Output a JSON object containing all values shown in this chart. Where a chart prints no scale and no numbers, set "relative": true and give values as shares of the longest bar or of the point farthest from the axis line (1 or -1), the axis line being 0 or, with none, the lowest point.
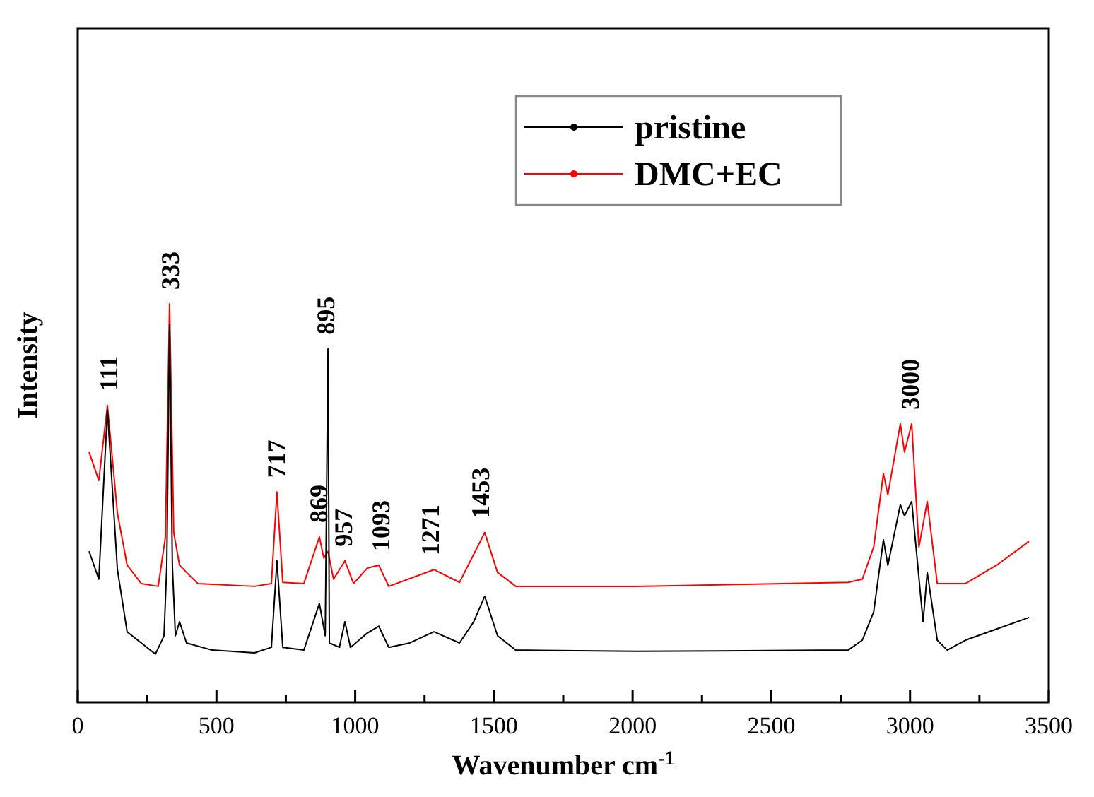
{
  "chart_data": {
    "type": "line",
    "relative": true,
    "xlabel": "Wavenumber cm$^{-1}$",
    "ylabel": "Intensity",
    "xlim": [
      0,
      3500
    ],
    "xticks": [
      0,
      {
        "value": 250,
        "label": null
      },
      500,
      {
        "value": 750,
        "label": null
      },
      1000,
      {
        "value": 1250,
        "label": null
      },
      1500,
      {
        "value": 1750,
        "label": null
      },
      2000,
      {
        "value": 2250,
        "label": null
      },
      2500,
      {
        "value": 2750,
        "label": null
      },
      3000,
      {
        "value": 3250,
        "label": null
      },
      3500
    ],
    "legend": "top right",
    "line_style": "solid",
    "grid": false,
    "series": [
      {
        "name": "pristine",
        "color": "#000000",
        "x": [
          41,
          76,
          107,
          143,
          178,
          229,
          280,
          311,
          321,
          331,
          341,
          352,
          367,
          392,
          484,
          637,
          698,
          718,
          739,
          815,
          871,
          892,
          902,
          907,
          943,
          963,
          983,
          1044,
          1085,
          1121,
          1197,
          1284,
          1376,
          1427,
          1467,
          1513,
          1579,
          2013,
          2777,
          2828,
          2869,
          2904,
          2920,
          2965,
          2980,
          3006,
          3047,
          3062,
          3098,
          3134,
          3200,
          3312,
          3429
        ],
        "values": [
          0.379,
          0.309,
          0.734,
          0.333,
          0.177,
          0.149,
          0.121,
          0.167,
          0.344,
          0.947,
          0.344,
          0.167,
          0.202,
          0.149,
          0.131,
          0.124,
          0.138,
          0.355,
          0.138,
          0.131,
          0.248,
          0.167,
          0.887,
          0.149,
          0.138,
          0.202,
          0.138,
          0.174,
          0.191,
          0.138,
          0.149,
          0.177,
          0.149,
          0.202,
          0.266,
          0.167,
          0.131,
          0.128,
          0.131,
          0.156,
          0.227,
          0.408,
          0.344,
          0.496,
          0.468,
          0.504,
          0.202,
          0.326,
          0.156,
          0.131,
          0.156,
          0.184,
          0.213
        ]
      },
      {
        "name": "DMC+EC",
        "color": "#ff0000",
        "x": [
          41,
          76,
          107,
          143,
          178,
          229,
          290,
          316,
          331,
          346,
          367,
          392,
          433,
          637,
          698,
          718,
          739,
          815,
          871,
          887,
          902,
          922,
          963,
          994,
          1044,
          1085,
          1121,
          1284,
          1376,
          1467,
          1513,
          1579,
          2013,
          2777,
          2828,
          2869,
          2904,
          2920,
          2965,
          2980,
          3006,
          3032,
          3062,
          3098,
          3200,
          3312,
          3429
        ],
        "values": [
          0.628,
          0.557,
          0.745,
          0.475,
          0.344,
          0.298,
          0.291,
          0.415,
          1,
          0.426,
          0.344,
          0.326,
          0.298,
          0.291,
          0.298,
          0.528,
          0.301,
          0.298,
          0.415,
          0.362,
          0.379,
          0.309,
          0.355,
          0.298,
          0.337,
          0.344,
          0.291,
          0.333,
          0.301,
          0.426,
          0.326,
          0.291,
          0.291,
          0.301,
          0.309,
          0.39,
          0.574,
          0.521,
          0.699,
          0.628,
          0.699,
          0.39,
          0.504,
          0.298,
          0.298,
          0.344,
          0.404
        ]
      }
    ],
    "annotations": [
      {
        "text": "111",
        "x": 111,
        "y": 0.745
      },
      {
        "text": "333",
        "x": 333,
        "y": 1
      },
      {
        "text": "717",
        "x": 717,
        "y": 0.528
      },
      {
        "text": "869",
        "x": 869,
        "y": 0.415
      },
      {
        "text": "895",
        "x": 895,
        "y": 0.887
      },
      {
        "text": "957",
        "x": 957,
        "y": 0.355
      },
      {
        "text": "1093",
        "x": 1093,
        "y": 0.344
      },
      {
        "text": "1271",
        "x": 1271,
        "y": 0.333
      },
      {
        "text": "1453",
        "x": 1453,
        "y": 0.426
      },
      {
        "text": "3000",
        "x": 3000,
        "y": 0.699
      }
    ]
  }
}
